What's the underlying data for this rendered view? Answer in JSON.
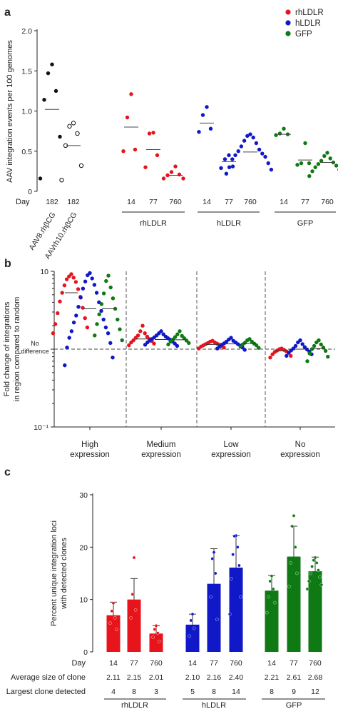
{
  "colors": {
    "rhLDLR": "#e8141c",
    "hLDLR": "#1018c8",
    "GFP": "#0f7a14",
    "black": "#111111"
  },
  "legend": [
    {
      "label": "rhLDLR",
      "color": "#e8141c"
    },
    {
      "label": "hLDLR",
      "color": "#1018c8"
    },
    {
      "label": "GFP",
      "color": "#0f7a14"
    }
  ],
  "chart_data": [
    {
      "panel": "a",
      "type": "scatter",
      "ylabel": "AAV integration events per 100 genomes",
      "ylim": [
        0,
        2.0
      ],
      "yticks": [
        "0",
        "0.5",
        "1.0",
        "1.5",
        "2.0"
      ],
      "row_label": "Day",
      "groups": [
        {
          "day": "182",
          "name": "AAV8.rhβCG",
          "color": "black",
          "filled": true,
          "mean": 1.02,
          "values": [
            1.58,
            1.47,
            1.25,
            1.14,
            0.68,
            0.16
          ]
        },
        {
          "day": "182",
          "name": "AAVrh10.rhβCG",
          "color": "black",
          "filled": false,
          "mean": 0.57,
          "values": [
            0.85,
            0.81,
            0.72,
            0.57,
            0.32,
            0.14
          ]
        },
        {
          "day": "14",
          "group": "rhLDLR",
          "color": "rhLDLR",
          "filled": true,
          "mean": 0.8,
          "values": [
            1.21,
            0.92,
            0.52,
            0.5
          ]
        },
        {
          "day": "77",
          "group": "rhLDLR",
          "color": "rhLDLR",
          "filled": true,
          "mean": 0.52,
          "values": [
            0.73,
            0.72,
            0.45,
            0.3
          ]
        },
        {
          "day": "760",
          "group": "rhLDLR",
          "color": "rhLDLR",
          "filled": true,
          "mean": 0.2,
          "values": [
            0.31,
            0.24,
            0.21,
            0.2,
            0.16,
            0.16
          ]
        },
        {
          "day": "14",
          "group": "hLDLR",
          "color": "hLDLR",
          "filled": true,
          "mean": 0.85,
          "values": [
            1.05,
            0.95,
            0.78,
            0.74
          ]
        },
        {
          "day": "77",
          "group": "hLDLR",
          "color": "hLDLR",
          "filled": true,
          "mean": 0.37,
          "values": [
            0.45,
            0.4,
            0.31,
            0.29
          ]
        },
        {
          "day": "760",
          "group": "hLDLR",
          "color": "hLDLR",
          "filled": true,
          "mean": 0.49,
          "values": [
            0.71,
            0.69,
            0.67,
            0.63,
            0.6,
            0.56,
            0.52,
            0.5,
            0.47,
            0.45,
            0.43,
            0.4,
            0.35,
            0.3,
            0.27,
            0.22
          ]
        },
        {
          "day": "14",
          "group": "GFP",
          "color": "GFP",
          "filled": true,
          "mean": 0.71,
          "values": [
            0.78,
            0.72,
            0.71,
            0.7
          ]
        },
        {
          "day": "77",
          "group": "GFP",
          "color": "GFP",
          "filled": true,
          "mean": 0.39,
          "values": [
            0.6,
            0.35,
            0.35,
            0.33
          ]
        },
        {
          "day": "760",
          "group": "GFP",
          "color": "GFP",
          "filled": true,
          "mean": 0.36,
          "values": [
            0.48,
            0.44,
            0.41,
            0.38,
            0.36,
            0.34,
            0.32,
            0.3,
            0.27,
            0.25,
            0.22,
            0.19
          ]
        }
      ],
      "vector_labels": [
        "AAV8.rhβCG",
        "AAVrh10.rhβCG"
      ],
      "group_labels": [
        "rhLDLR",
        "hLDLR",
        "GFP"
      ]
    },
    {
      "panel": "b",
      "type": "scatter",
      "ylabel_lines": [
        "Fold change of integrations",
        "in region compared to random"
      ],
      "yscale": "log",
      "ylim": [
        0.1,
        10
      ],
      "yticks": [
        "10",
        "10⁻¹"
      ],
      "reference_label_lines": [
        "No",
        "difference"
      ],
      "categories": [
        {
          "label_lines": [
            "High",
            "expression"
          ],
          "series": [
            {
              "name": "rhLDLR",
              "mean": 5.3,
              "values": [
                9.2,
                8.6,
                8.3,
                7.9,
                7.3,
                6.6,
                5.9,
                5.3,
                4.7,
                4.1,
                3.4,
                2.9,
                2.5,
                2.1,
                1.9,
                1.6
              ]
            },
            {
              "name": "hLDLR",
              "mean": 3.3,
              "values": [
                9.5,
                8.9,
                8.1,
                7.4,
                6.7,
                6.0,
                5.3,
                4.6,
                4.0,
                3.5,
                3.1,
                2.7,
                2.4,
                2.2,
                1.9,
                1.7,
                1.6,
                1.4,
                1.2,
                1.05,
                0.78,
                0.62
              ]
            },
            {
              "name": "GFP",
              "mean": 3.3,
              "values": [
                8.8,
                7.5,
                6.2,
                5.2,
                4.5,
                3.8,
                3.3,
                2.8,
                2.4,
                2.1,
                1.8,
                1.5,
                1.3
              ]
            }
          ]
        },
        {
          "label_lines": [
            "Medium",
            "expression"
          ],
          "series": [
            {
              "name": "rhLDLR",
              "mean": 1.35,
              "values": [
                2.0,
                1.7,
                1.6,
                1.5,
                1.45,
                1.4,
                1.35,
                1.3,
                1.27,
                1.22,
                1.18,
                1.12
              ]
            },
            {
              "name": "hLDLR",
              "mean": 1.33,
              "values": [
                1.7,
                1.6,
                1.55,
                1.5,
                1.45,
                1.42,
                1.38,
                1.35,
                1.32,
                1.29,
                1.25,
                1.22,
                1.18,
                1.14,
                1.1
              ]
            },
            {
              "name": "GFP",
              "mean": 1.32,
              "values": [
                1.7,
                1.55,
                1.48,
                1.43,
                1.38,
                1.33,
                1.29,
                1.25,
                1.2,
                1.15
              ]
            }
          ]
        },
        {
          "label_lines": [
            "Low",
            "expression"
          ],
          "series": [
            {
              "name": "rhLDLR",
              "mean": 1.15,
              "values": [
                1.28,
                1.25,
                1.22,
                1.2,
                1.18,
                1.16,
                1.14,
                1.12,
                1.1,
                1.08,
                1.05,
                1.02
              ]
            },
            {
              "name": "hLDLR",
              "mean": 1.17,
              "values": [
                1.4,
                1.33,
                1.28,
                1.25,
                1.22,
                1.19,
                1.16,
                1.14,
                1.11,
                1.08,
                1.05,
                1.02,
                0.98
              ]
            },
            {
              "name": "GFP",
              "mean": 1.18,
              "values": [
                1.35,
                1.3,
                1.25,
                1.21,
                1.18,
                1.15,
                1.12,
                1.08,
                1.04
              ]
            }
          ]
        },
        {
          "label_lines": [
            "No",
            "expression"
          ],
          "series": [
            {
              "name": "rhLDLR",
              "mean": 0.95,
              "values": [
                1.02,
                1.0,
                0.98,
                0.96,
                0.94,
                0.92,
                0.9,
                0.86,
                0.82,
                0.78
              ]
            },
            {
              "name": "hLDLR",
              "mean": 1.0,
              "values": [
                1.3,
                1.22,
                1.16,
                1.1,
                1.06,
                1.02,
                0.99,
                0.96,
                0.93,
                0.9,
                0.86,
                0.82
              ]
            },
            {
              "name": "GFP",
              "mean": 1.02,
              "values": [
                1.3,
                1.22,
                1.15,
                1.1,
                1.05,
                1.0,
                0.95,
                0.88,
                0.8,
                0.7
              ]
            }
          ]
        }
      ]
    },
    {
      "panel": "c",
      "type": "bar",
      "ylabel_lines": [
        "Percent unique integration loci",
        "with detected clones"
      ],
      "ylim": [
        0,
        30
      ],
      "yticks": [
        "0",
        "10",
        "20",
        "30"
      ],
      "row_labels": [
        "Day",
        "Average size of clone",
        "Largest clone detected"
      ],
      "group_labels": [
        "rhLDLR",
        "hLDLR",
        "GFP"
      ],
      "bars": [
        {
          "group": "rhLDLR",
          "day": "14",
          "avg": "2.11",
          "largest": "4",
          "value": 7.0,
          "error": 2.5,
          "points": [
            9.3,
            7.8,
            6.5,
            5.5,
            4.3
          ]
        },
        {
          "group": "rhLDLR",
          "day": "77",
          "avg": "2.15",
          "largest": "8",
          "value": 10.0,
          "error": 4.0,
          "points": [
            18.0,
            11.0,
            8.0,
            6.5
          ]
        },
        {
          "group": "rhLDLR",
          "day": "760",
          "avg": "2.01",
          "largest": "3",
          "value": 3.5,
          "error": 1.5,
          "points": [
            5.0,
            4.3,
            3.6,
            2.8,
            2.0
          ]
        },
        {
          "group": "hLDLR",
          "day": "14",
          "avg": "2.10",
          "largest": "5",
          "value": 5.2,
          "error": 2.0,
          "points": [
            7.2,
            6.0,
            4.5,
            3.0
          ]
        },
        {
          "group": "hLDLR",
          "day": "77",
          "avg": "2.16",
          "largest": "8",
          "value": 13.0,
          "error": 6.7,
          "points": [
            19.0,
            17.8,
            15.0,
            10.5,
            6.2
          ]
        },
        {
          "group": "hLDLR",
          "day": "760",
          "avg": "2.40",
          "largest": "14",
          "value": 16.1,
          "error": 6.1,
          "points": [
            22.2,
            22.1,
            20.0,
            18.6,
            16.5,
            14.0,
            10.5,
            7.2
          ]
        },
        {
          "group": "GFP",
          "day": "14",
          "avg": "2.21",
          "largest": "8",
          "value": 11.7,
          "error": 2.9,
          "points": [
            14.5,
            13.5,
            12.0,
            10.5,
            9.4,
            7.5
          ]
        },
        {
          "group": "GFP",
          "day": "77",
          "avg": "2.61",
          "largest": "9",
          "value": 18.2,
          "error": 5.8,
          "points": [
            26.0,
            24.0,
            20.0,
            17.0,
            15.0,
            12.5
          ]
        },
        {
          "group": "GFP",
          "day": "760",
          "avg": "2.68",
          "largest": "12",
          "value": 15.4,
          "error": 2.7,
          "points": [
            18.0,
            17.5,
            17.0,
            16.3,
            15.6,
            15.0,
            14.3,
            13.5,
            12.8,
            12.0
          ]
        }
      ]
    }
  ]
}
